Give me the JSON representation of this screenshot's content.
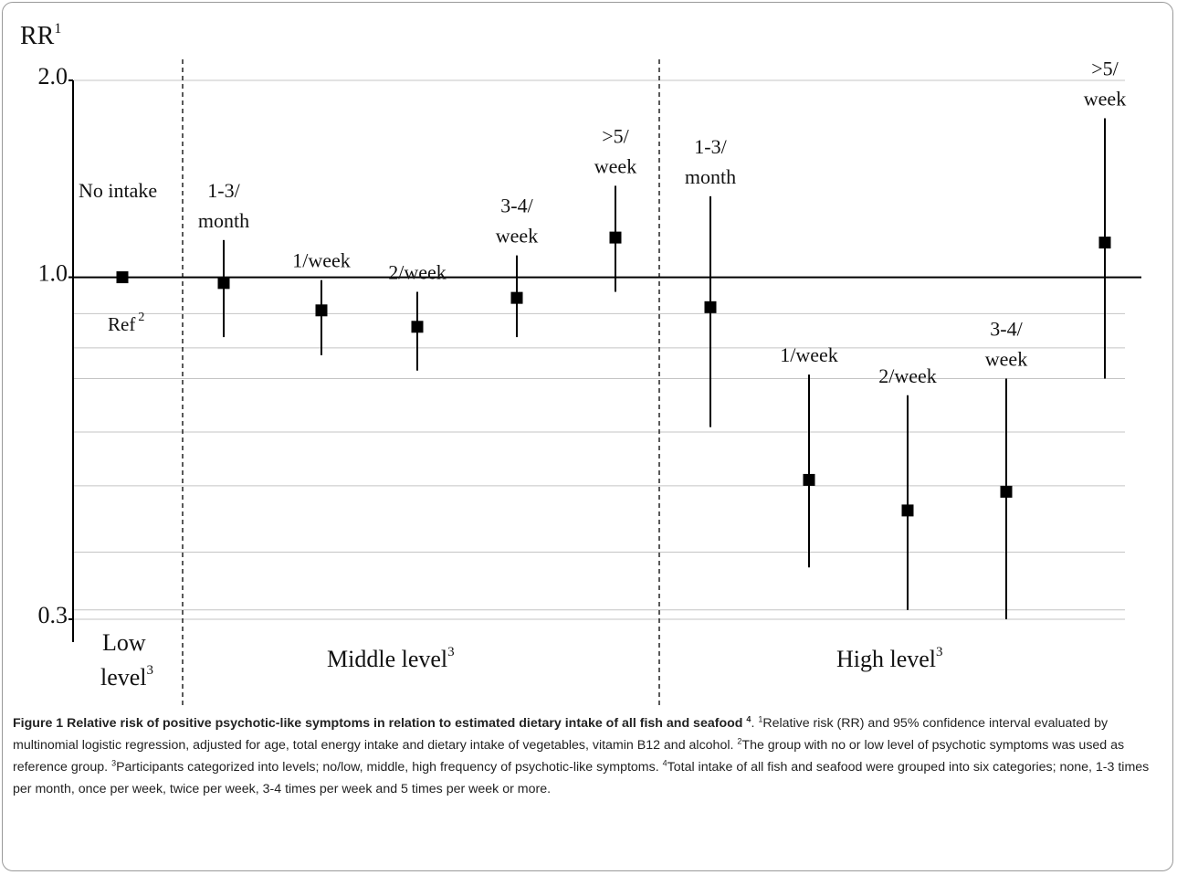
{
  "chart_data": {
    "type": "scatter",
    "subtype": "point-estimate-with-confidence-interval",
    "y_axis": {
      "label": "RR",
      "label_superscript": "1",
      "scale": "log",
      "ylim": [
        0.3,
        2.0
      ],
      "ticks": [
        "2.0",
        "1.0",
        "0.3"
      ],
      "tick_values": [
        2.0,
        1.0,
        0.3
      ],
      "reference_line": 1.0
    },
    "gridlines": [
      0.88,
      0.78,
      0.7,
      0.58,
      0.48,
      0.38,
      0.31
    ],
    "groups": [
      {
        "name": "Low",
        "name_line2": "level",
        "superscript": "3"
      },
      {
        "name": "Middle level",
        "superscript": "3"
      },
      {
        "name": "High level",
        "superscript": "3"
      }
    ],
    "reference_point": {
      "label": "No intake",
      "sublabel": "Ref",
      "sublabel_superscript": "2",
      "value": 1.0
    },
    "points": [
      {
        "group": "Middle level",
        "label": [
          "1-3/",
          "month"
        ],
        "value": 0.98,
        "low": 0.81,
        "high": 1.14
      },
      {
        "group": "Middle level",
        "label": [
          "1/week"
        ],
        "value": 0.89,
        "low": 0.76,
        "high": 0.99
      },
      {
        "group": "Middle level",
        "label": [
          "2/week"
        ],
        "value": 0.84,
        "low": 0.72,
        "high": 0.95
      },
      {
        "group": "Middle level",
        "label": [
          "3-4/",
          "week"
        ],
        "value": 0.93,
        "low": 0.81,
        "high": 1.08
      },
      {
        "group": "Middle level",
        "label": [
          ">5/",
          "week"
        ],
        "value": 1.15,
        "low": 0.95,
        "high": 1.38
      },
      {
        "group": "High level",
        "label": [
          "1-3/",
          "month"
        ],
        "value": 0.9,
        "low": 0.59,
        "high": 1.33
      },
      {
        "group": "High level",
        "label": [
          "1/week"
        ],
        "value": 0.49,
        "low": 0.36,
        "high": 0.71
      },
      {
        "group": "High level",
        "label": [
          "2/week"
        ],
        "value": 0.44,
        "low": 0.31,
        "high": 0.66
      },
      {
        "group": "High level",
        "label": [
          "3-4/",
          "week"
        ],
        "value": 0.47,
        "low": 0.3,
        "high": 0.7
      },
      {
        "group": "High level",
        "label": [
          ">5/",
          "week"
        ],
        "value": 1.13,
        "low": 0.7,
        "high": 1.75
      }
    ]
  },
  "caption": {
    "figure_label": "Figure 1",
    "title": "Relative risk of positive psychotic-like symptoms in relation to estimated dietary intake of all fish and seafood",
    "title_superscript": "4",
    "note1_mark": "1",
    "note1": "Relative risk (RR) and 95% confidence interval evaluated by multinomial logistic regression, adjusted for age, total energy intake and dietary intake of vegetables, vitamin B12 and alcohol.",
    "note2_mark": "2",
    "note2": "The group with no or low level of psychotic symptoms was used as reference group.",
    "note3_mark": "3",
    "note3": "Participants categorized into levels; no/low, middle, high frequency of psychotic-like symptoms.",
    "note4_mark": "4",
    "note4": "Total intake of all fish and seafood were grouped into six categories; none, 1-3 times per month, once per week, twice per week, 3-4 times per week and 5 times per week or more."
  }
}
